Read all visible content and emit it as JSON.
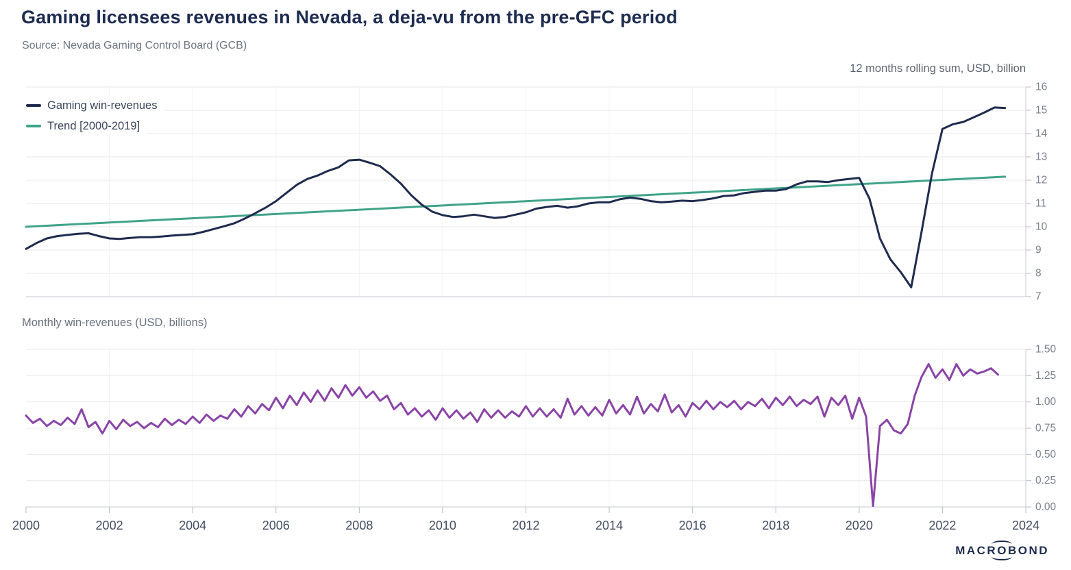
{
  "header": {
    "title": "Gaming licensees revenues in Nevada, a deja-vu from the pre-GFC period",
    "source": "Source: Nevada Gaming Control Board (GCB)"
  },
  "footer": {
    "logo_pre": "MACR",
    "logo_o": "O",
    "logo_post": "BOND"
  },
  "colors": {
    "navy": "#1e2b4e",
    "green": "#3fa389",
    "purple": "#8944a6",
    "grid": "#e9eaed",
    "grid_vertical": "#f1f2f4",
    "axis": "#c6cad1",
    "tick": "#b8bcc3",
    "y_tick_label": "#7b828e",
    "x_tick_label": "#434d61"
  },
  "chart_data": [
    {
      "type": "line",
      "title": "12 months rolling sum, USD, billion",
      "xlim": [
        2000,
        2024
      ],
      "ylim": [
        7,
        16
      ],
      "grid": true,
      "legend_position": "top-left",
      "y_ticks": [
        16,
        15,
        14,
        13,
        12,
        11,
        10,
        9,
        8,
        7
      ],
      "x_ticks": [
        2000,
        2002,
        2004,
        2006,
        2008,
        2010,
        2012,
        2014,
        2016,
        2018,
        2020,
        2022,
        2024
      ],
      "series": [
        {
          "name": "Gaming win-revenues",
          "color": "#1e2b4e",
          "start_year": 2000.0,
          "step_months": 3,
          "values": [
            9.05,
            9.3,
            9.5,
            9.6,
            9.65,
            9.7,
            9.72,
            9.6,
            9.5,
            9.48,
            9.52,
            9.55,
            9.55,
            9.58,
            9.62,
            9.65,
            9.68,
            9.78,
            9.9,
            10.02,
            10.15,
            10.35,
            10.58,
            10.82,
            11.1,
            11.45,
            11.8,
            12.05,
            12.2,
            12.4,
            12.55,
            12.85,
            12.88,
            12.75,
            12.6,
            12.25,
            11.85,
            11.35,
            10.95,
            10.65,
            10.5,
            10.42,
            10.45,
            10.52,
            10.45,
            10.38,
            10.42,
            10.52,
            10.62,
            10.78,
            10.85,
            10.9,
            10.82,
            10.88,
            11.0,
            11.05,
            11.05,
            11.18,
            11.25,
            11.2,
            11.1,
            11.05,
            11.08,
            11.12,
            11.1,
            11.15,
            11.22,
            11.32,
            11.35,
            11.45,
            11.5,
            11.55,
            11.55,
            11.62,
            11.82,
            11.95,
            11.95,
            11.92,
            12.0,
            12.05,
            12.1,
            11.2,
            9.5,
            8.6,
            8.05,
            7.4,
            9.8,
            12.3,
            14.2,
            14.4,
            14.5,
            14.7,
            14.9,
            15.12,
            15.1
          ]
        },
        {
          "name": "Trend [2000-2019]",
          "color": "#3fa389",
          "x": [
            2000.0,
            2023.5
          ],
          "values": [
            10.0,
            12.15
          ]
        }
      ]
    },
    {
      "type": "line",
      "title": "Monthly win-revenues (USD, billions)",
      "xlim": [
        2000,
        2024
      ],
      "ylim": [
        0,
        1.5
      ],
      "grid": true,
      "y_ticks": [
        "1.50",
        "1.25",
        "1.00",
        "0.75",
        "0.50",
        "0.25",
        "0.00"
      ],
      "x_ticks": [
        2000,
        2002,
        2004,
        2006,
        2008,
        2010,
        2012,
        2014,
        2016,
        2018,
        2020,
        2022,
        2024
      ],
      "series": [
        {
          "name": "Monthly win-revenues",
          "color": "#8944a6",
          "start_year": 2000.0,
          "step_months": 2,
          "values": [
            0.87,
            0.8,
            0.84,
            0.77,
            0.82,
            0.78,
            0.85,
            0.79,
            0.93,
            0.76,
            0.81,
            0.7,
            0.82,
            0.74,
            0.83,
            0.77,
            0.81,
            0.75,
            0.8,
            0.76,
            0.84,
            0.78,
            0.83,
            0.79,
            0.86,
            0.8,
            0.88,
            0.82,
            0.87,
            0.84,
            0.93,
            0.86,
            0.96,
            0.89,
            0.98,
            0.92,
            1.04,
            0.94,
            1.06,
            0.97,
            1.09,
            1.0,
            1.11,
            1.01,
            1.13,
            1.04,
            1.16,
            1.06,
            1.14,
            1.04,
            1.1,
            1.01,
            1.06,
            0.93,
            0.99,
            0.88,
            0.94,
            0.86,
            0.92,
            0.83,
            0.94,
            0.85,
            0.92,
            0.84,
            0.9,
            0.81,
            0.93,
            0.85,
            0.92,
            0.85,
            0.91,
            0.86,
            0.96,
            0.86,
            0.94,
            0.86,
            0.93,
            0.85,
            1.03,
            0.88,
            0.96,
            0.87,
            0.95,
            0.87,
            1.02,
            0.89,
            0.97,
            0.88,
            1.05,
            0.89,
            0.98,
            0.91,
            1.07,
            0.9,
            0.97,
            0.86,
            0.99,
            0.93,
            1.01,
            0.93,
            1.0,
            0.95,
            1.01,
            0.93,
            1.0,
            0.96,
            1.03,
            0.94,
            1.04,
            0.97,
            1.05,
            0.96,
            1.02,
            0.98,
            1.05,
            0.86,
            1.04,
            0.97,
            1.06,
            0.84,
            1.04,
            0.86,
            0.01,
            0.77,
            0.83,
            0.73,
            0.7,
            0.79,
            1.06,
            1.24,
            1.36,
            1.23,
            1.31,
            1.21,
            1.36,
            1.25,
            1.31,
            1.27,
            1.29,
            1.32,
            1.26
          ]
        }
      ]
    }
  ]
}
